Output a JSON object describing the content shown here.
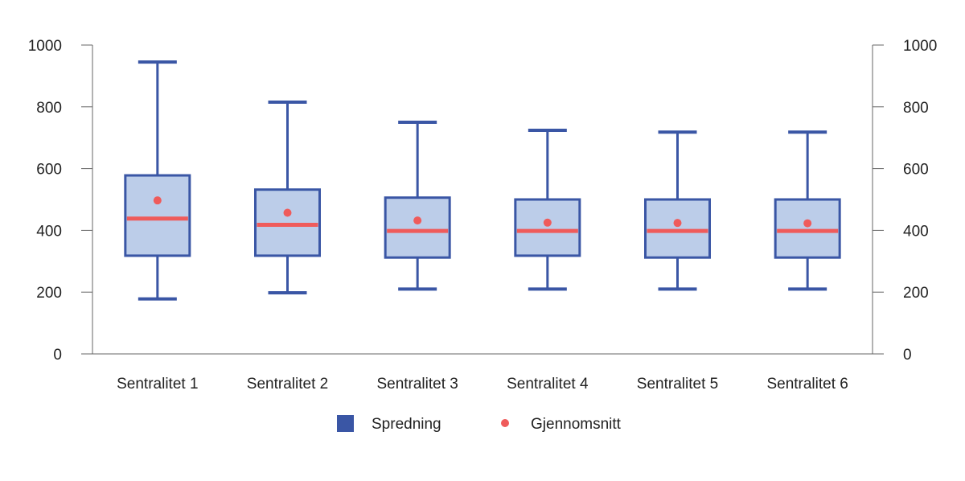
{
  "chart_data": {
    "type": "boxplot",
    "title": "",
    "xlabel": "",
    "ylabel": "",
    "ylim": [
      0,
      1000
    ],
    "yticks": [
      "0",
      "200",
      "400",
      "600",
      "800",
      "1000"
    ],
    "secondary_y_axis": true,
    "grid": false,
    "legend_position": "bottom",
    "categories": [
      "Sentralitet 1",
      "Sentralitet 2",
      "Sentralitet 3",
      "Sentralitet 4",
      "Sentralitet 5",
      "Sentralitet 6"
    ],
    "boxes": [
      {
        "min": 178,
        "q1": 318,
        "median": 438,
        "q3": 578,
        "max": 945,
        "mean": 497
      },
      {
        "min": 198,
        "q1": 318,
        "median": 418,
        "q3": 532,
        "max": 815,
        "mean": 457
      },
      {
        "min": 210,
        "q1": 312,
        "median": 398,
        "q3": 506,
        "max": 750,
        "mean": 432
      },
      {
        "min": 210,
        "q1": 318,
        "median": 398,
        "q3": 500,
        "max": 724,
        "mean": 425
      },
      {
        "min": 210,
        "q1": 312,
        "median": 398,
        "q3": 500,
        "max": 718,
        "mean": 424
      },
      {
        "min": 210,
        "q1": 312,
        "median": 398,
        "q3": 500,
        "max": 718,
        "mean": 423
      }
    ],
    "legend": [
      {
        "label": "Spredning",
        "color": "#3a56a5",
        "marker": "square"
      },
      {
        "label": "Gjennomsnitt",
        "color": "#ef5b5b",
        "marker": "circle"
      }
    ],
    "colors": {
      "box_fill": "#bccde9",
      "box_stroke": "#3a56a5",
      "median": "#ef5b5b",
      "mean": "#ef5b5b",
      "axis": "#666666"
    }
  }
}
